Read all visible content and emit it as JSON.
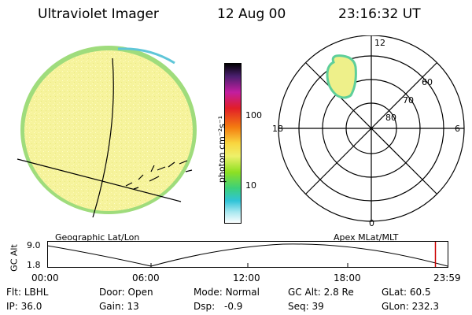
{
  "header": {
    "instrument": "Ultraviolet Imager",
    "date": "12 Aug 00",
    "time": "23:16:32 UT"
  },
  "colorbar": {
    "unit_label": "photon cm⁻²s⁻¹",
    "ticks": [
      "100",
      "10"
    ]
  },
  "polar_plot": {
    "mlt_labels": {
      "top": "12",
      "left": "18",
      "right": "6",
      "bottom": "0"
    },
    "lat_labels": [
      "60",
      "70",
      "80"
    ]
  },
  "timeline": {
    "left_caption": "Geographic Lat/Lon",
    "right_caption": "Apex MLat/MLT",
    "y_axis_label": "GC Alt",
    "y_max": "9.0",
    "y_min": "1.8",
    "x_ticks": [
      "00:00",
      "06:00",
      "12:00",
      "18:00",
      "23:59"
    ],
    "current_marker_hours": 23.27
  },
  "status": {
    "row1": [
      {
        "key": "Flt:",
        "val": "LBHL"
      },
      {
        "key": "Door:",
        "val": "Open"
      },
      {
        "key": "Mode:",
        "val": "Normal"
      },
      {
        "key": "GC Alt:",
        "val": "2.8 Re"
      },
      {
        "key": "GLat:",
        "val": "60.5"
      }
    ],
    "row2": [
      {
        "key": "IP:",
        "val": "36.0"
      },
      {
        "key": "Gain:",
        "val": "13"
      },
      {
        "key": "Dsp:",
        "val": "-0.9"
      },
      {
        "key": "Seq:",
        "val": "39"
      },
      {
        "key": "GLon:",
        "val": "232.3"
      }
    ]
  },
  "colors": {
    "disk_fill": "#f5f29a",
    "disk_edge": "#8fd07a",
    "oval_fill": "#eef08a",
    "oval_edge": "#5ecf9a",
    "marker_red": "#cc0000"
  }
}
